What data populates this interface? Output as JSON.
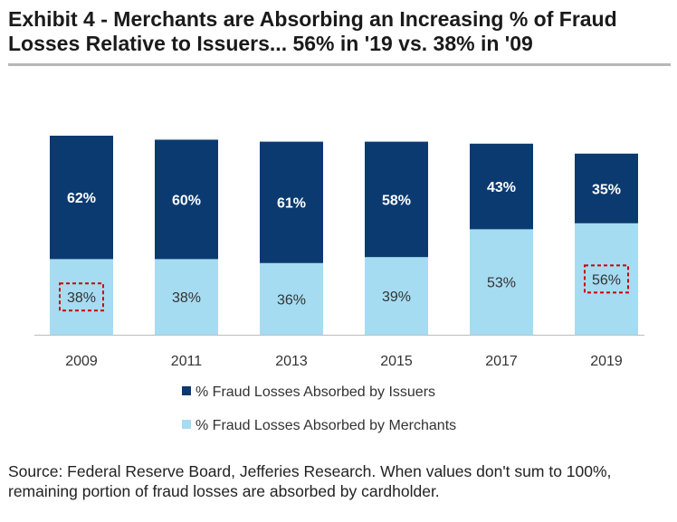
{
  "title": "Exhibit 4 - Merchants are Absorbing an Increasing % of Fraud Losses Relative to Issuers... 56% in '19 vs. 38% in '09",
  "source_note": "Source: Federal Reserve Board, Jefferies Research. When values don't sum to 100%, remaining portion of fraud losses are absorbed by cardholder.",
  "colors": {
    "issuers": "#0b3a70",
    "merchants": "#a6dcf2",
    "highlight": "#cc0000",
    "axis": "#bdbdbd"
  },
  "chart_data": {
    "type": "bar",
    "stacked": true,
    "title": "Exhibit 4 - Merchants are Absorbing an Increasing % of Fraud Losses Relative to Issuers... 56% in '19 vs. 38% in '09",
    "xlabel": "",
    "ylabel": "",
    "ylim": [
      0,
      100
    ],
    "grid": false,
    "legend_position": "bottom",
    "categories": [
      "2009",
      "2011",
      "2013",
      "2015",
      "2017",
      "2019"
    ],
    "series": [
      {
        "name": "% Fraud Losses Absorbed by Merchants",
        "values": [
          38,
          38,
          36,
          39,
          53,
          56
        ],
        "labels": [
          "38%",
          "38%",
          "36%",
          "39%",
          "53%",
          "56%"
        ]
      },
      {
        "name": "% Fraud Losses Absorbed by Issuers",
        "values": [
          62,
          60,
          61,
          58,
          43,
          35
        ],
        "labels": [
          "62%",
          "60%",
          "61%",
          "58%",
          "43%",
          "35%"
        ]
      }
    ],
    "annotations": [
      {
        "category": "2009",
        "series": "% Fraud Losses Absorbed by Merchants",
        "style": "dashed-box"
      },
      {
        "category": "2019",
        "series": "% Fraud Losses Absorbed by Merchants",
        "style": "dashed-box"
      }
    ]
  }
}
